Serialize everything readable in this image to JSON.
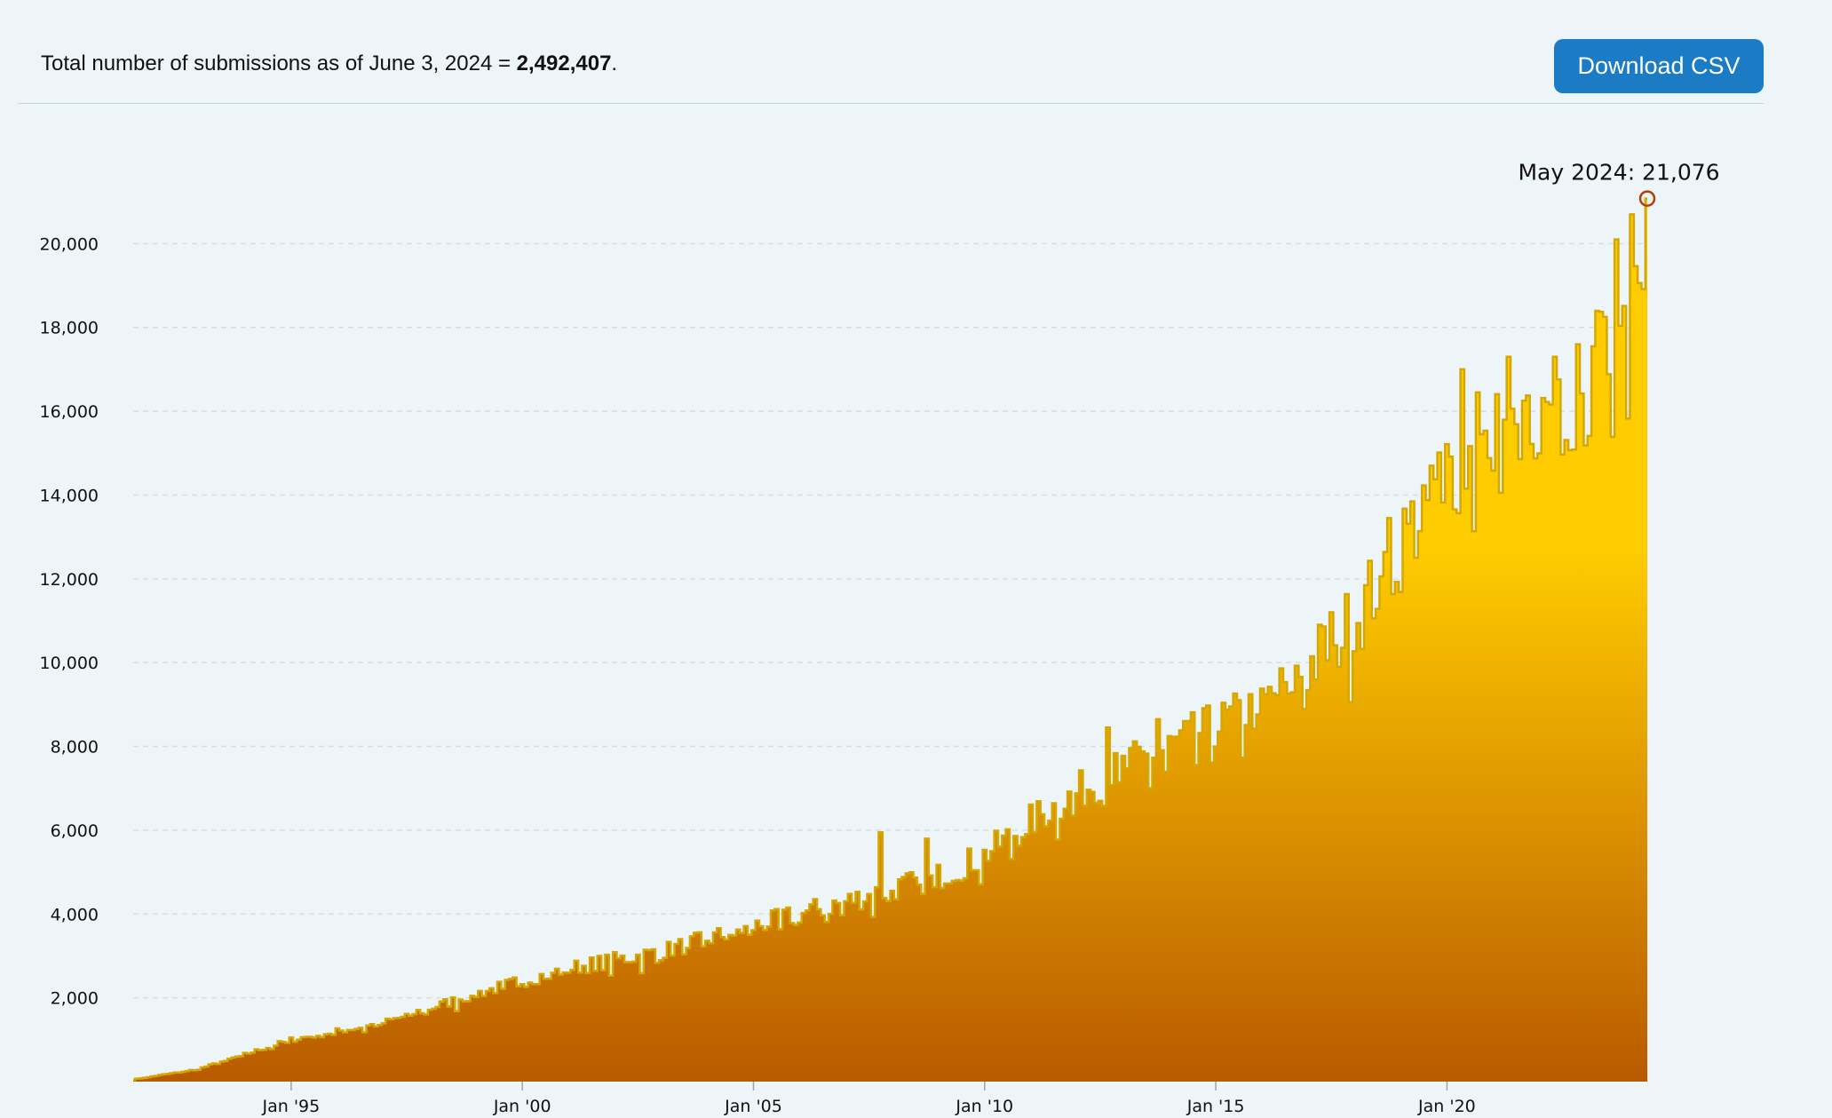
{
  "header": {
    "summary_prefix": "Total number of submissions as of June 3, 2024 = ",
    "summary_total": "2,492,407",
    "summary_suffix": ".",
    "download_label": "Download CSV"
  },
  "colors": {
    "background": "#eef5f8",
    "button": "#1b7bc4",
    "area_top": "#ffcc00",
    "area_bottom": "#b85a00",
    "line": "#d4a800",
    "marker": "#b0400a",
    "grid": "#d6dde3"
  },
  "chart_data": {
    "type": "area",
    "step": true,
    "start": "1991-08",
    "end": "2024-05",
    "frequency": "monthly",
    "ylim": [
      0,
      22000
    ],
    "y_ticks": [
      2000,
      4000,
      6000,
      8000,
      10000,
      12000,
      14000,
      16000,
      18000,
      20000
    ],
    "y_tick_labels": [
      "2,000",
      "4,000",
      "6,000",
      "8,000",
      "10,000",
      "12,000",
      "14,000",
      "16,000",
      "18,000",
      "20,000"
    ],
    "x_ticks": [
      "1995-01",
      "2000-01",
      "2005-01",
      "2010-01",
      "2015-01",
      "2020-01"
    ],
    "x_tick_labels": [
      "Jan '95",
      "Jan '00",
      "Jan '05",
      "Jan '10",
      "Jan '15",
      "Jan '20"
    ],
    "grid": true,
    "anchors": [
      [
        "1991-08",
        50
      ],
      [
        "1993-01",
        300
      ],
      [
        "1995-01",
        1000
      ],
      [
        "1997-01",
        1400
      ],
      [
        "1999-01",
        2100
      ],
      [
        "2001-01",
        2700
      ],
      [
        "2003-01",
        3100
      ],
      [
        "2005-01",
        3700
      ],
      [
        "2007-01",
        4300
      ],
      [
        "2009-01",
        4900
      ],
      [
        "2010-01",
        5400
      ],
      [
        "2011-01",
        6200
      ],
      [
        "2012-01",
        6900
      ],
      [
        "2013-01",
        7500
      ],
      [
        "2014-01",
        8000
      ],
      [
        "2015-01",
        8500
      ],
      [
        "2016-01",
        9000
      ],
      [
        "2017-01",
        9900
      ],
      [
        "2018-01",
        11000
      ],
      [
        "2019-01",
        12800
      ],
      [
        "2020-01",
        14600
      ],
      [
        "2021-01",
        15300
      ],
      [
        "2022-01",
        15200
      ],
      [
        "2023-01",
        16500
      ],
      [
        "2023-12",
        18500
      ],
      [
        "2024-05",
        21076
      ]
    ],
    "peaks": [
      [
        "2007-10",
        5950
      ],
      [
        "2008-10",
        5800
      ],
      [
        "2012-09",
        8450
      ],
      [
        "2013-10",
        8650
      ],
      [
        "2017-07",
        11200
      ],
      [
        "2018-10",
        13450
      ],
      [
        "2019-09",
        14700
      ],
      [
        "2020-05",
        17000
      ],
      [
        "2020-09",
        16450
      ],
      [
        "2021-05",
        17300
      ],
      [
        "2021-09",
        16250
      ],
      [
        "2022-05",
        17300
      ],
      [
        "2023-03",
        17550
      ],
      [
        "2023-06",
        18250
      ],
      [
        "2023-09",
        20100
      ],
      [
        "2024-01",
        20700
      ]
    ],
    "highlight": {
      "x": "2024-05",
      "y": 21076,
      "label": "May 2024: 21,076"
    }
  }
}
